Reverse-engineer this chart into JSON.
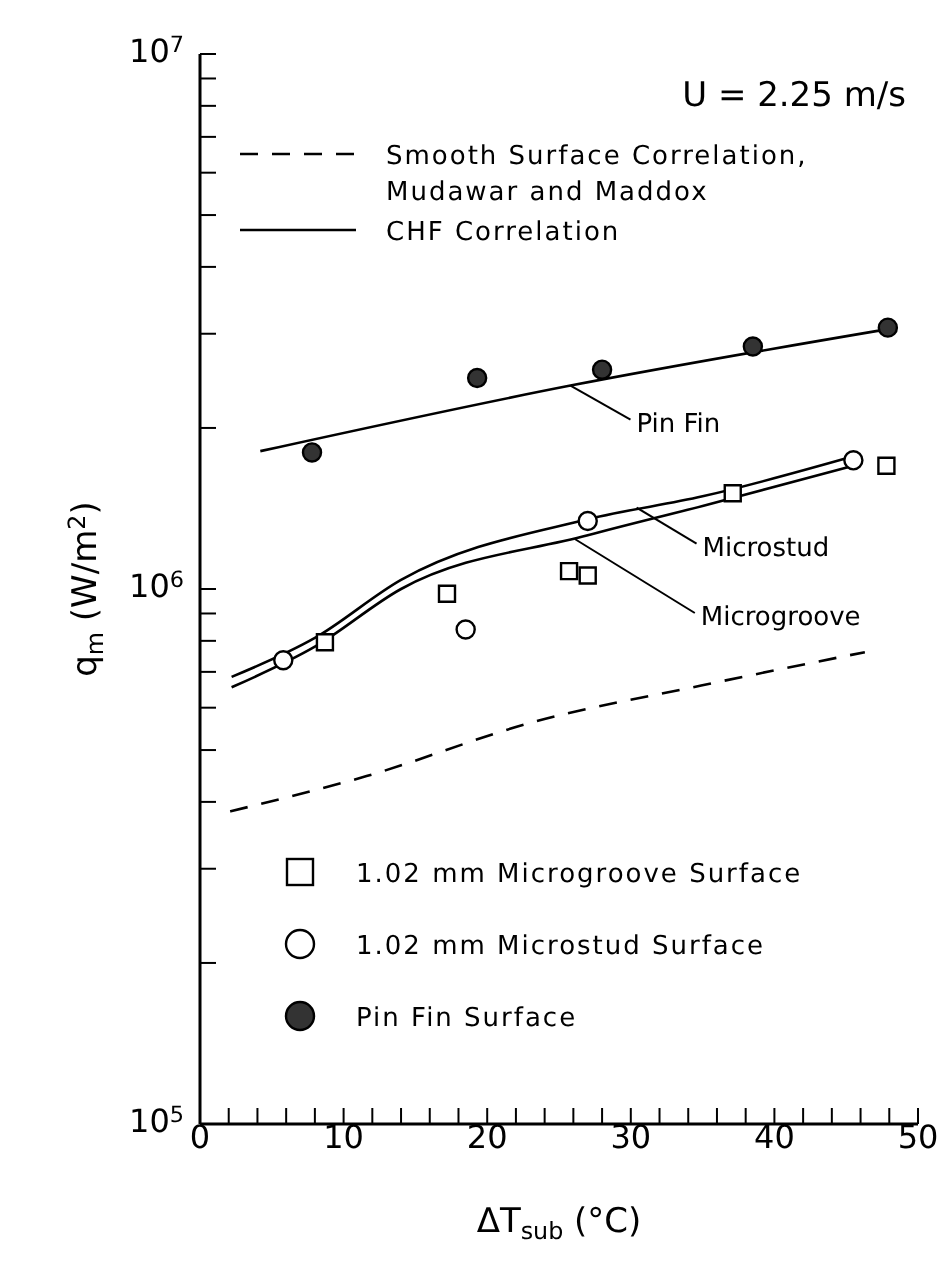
{
  "chart_data": {
    "type": "scatter",
    "xlabel": "ΔT$_{sub}$ (°C)",
    "ylabel": "q$_{m}$ (W/m$^{2}$)",
    "log": "y",
    "xlim": [
      0,
      50
    ],
    "xticks": [
      0,
      {
        "value": 2,
        "label": null
      },
      {
        "value": 4,
        "label": null
      },
      {
        "value": 6,
        "label": null
      },
      {
        "value": 8,
        "label": null
      },
      10,
      {
        "value": 12,
        "label": null
      },
      {
        "value": 14,
        "label": null
      },
      {
        "value": 16,
        "label": null
      },
      {
        "value": 18,
        "label": null
      },
      20,
      {
        "value": 22,
        "label": null
      },
      {
        "value": 24,
        "label": null
      },
      {
        "value": 26,
        "label": null
      },
      {
        "value": 28,
        "label": null
      },
      30,
      {
        "value": 32,
        "label": null
      },
      {
        "value": 34,
        "label": null
      },
      {
        "value": 36,
        "label": null
      },
      {
        "value": 38,
        "label": null
      },
      40,
      {
        "value": 42,
        "label": null
      },
      {
        "value": 44,
        "label": null
      },
      {
        "value": 46,
        "label": null
      },
      {
        "value": 48,
        "label": null
      },
      50
    ],
    "ylim": [
      100000,
      10000000
    ],
    "yticks": [
      {
        "value": 100000,
        "label": "10$^{5}$"
      },
      {
        "value": 200000,
        "label": null
      },
      {
        "value": 300000,
        "label": null
      },
      {
        "value": 400000,
        "label": null
      },
      {
        "value": 500000,
        "label": null
      },
      {
        "value": 600000,
        "label": null
      },
      {
        "value": 700000,
        "label": null
      },
      {
        "value": 800000,
        "label": null
      },
      {
        "value": 900000,
        "label": null
      },
      {
        "value": 1000000,
        "label": "10$^{6}$"
      },
      {
        "value": 2000000,
        "label": null
      },
      {
        "value": 3000000,
        "label": null
      },
      {
        "value": 4000000,
        "label": null
      },
      {
        "value": 5000000,
        "label": null
      },
      {
        "value": 6000000,
        "label": null
      },
      {
        "value": 7000000,
        "label": null
      },
      {
        "value": 8000000,
        "label": null
      },
      {
        "value": 9000000,
        "label": null
      },
      {
        "value": 10000000,
        "label": "10$^{7}$"
      }
    ],
    "grid": false,
    "legend": "left",
    "series": [
      {
        "type": "line",
        "name": "Smooth Surface Correlation,\nMudawar and Maddox",
        "color": "#000000",
        "line_style": "dashed",
        "marker": "none",
        "x": [
          2.1,
          11.6,
          23.3,
          34.9,
          46.3
        ],
        "values": [
          384000,
          447000,
          565000,
          660000,
          762000
        ]
      },
      {
        "type": "line",
        "name": "CHF Correlation",
        "color": "#000000",
        "line_style": "solid",
        "marker": "none",
        "x": [
          4.2,
          25.8,
          47.9
        ],
        "values": [
          1810000,
          2400000,
          3060000
        ]
      },
      {
        "type": "line",
        "color": "#000000",
        "line_style": "solid",
        "marker": "none",
        "x": [
          2.2,
          8,
          14,
          27,
          35,
          45.5
        ],
        "values": [
          685000,
          810000,
          1040000,
          1350000,
          1490000,
          1770000
        ]
      },
      {
        "type": "line",
        "color": "#000000",
        "line_style": "solid",
        "marker": "none",
        "x": [
          2.2,
          8,
          14,
          27,
          35,
          45.5
        ],
        "values": [
          655000,
          780000,
          1000000,
          1260000,
          1430000,
          1700000
        ]
      },
      {
        "type": "scatter",
        "name": "1.02 mm Microgroove Surface",
        "color": "#ffffff",
        "marker": "square",
        "x": [
          8.7,
          17.2,
          25.7,
          27.0,
          37.1,
          47.8
        ],
        "values": [
          795000,
          980000,
          1080000,
          1060000,
          1510000,
          1700000
        ]
      },
      {
        "type": "scatter",
        "name": "1.02 mm Microstud Surface",
        "color": "#ffffff",
        "marker": "circle",
        "x": [
          5.8,
          18.5,
          27.0,
          45.5
        ],
        "values": [
          736000,
          840000,
          1340000,
          1740000
        ]
      },
      {
        "type": "scatter",
        "name": "Pin Fin Surface",
        "color": "#333333",
        "marker": "circle",
        "x": [
          7.8,
          19.3,
          28.0,
          38.5,
          47.9
        ],
        "values": [
          1800000,
          2480000,
          2570000,
          2840000,
          3080000
        ]
      }
    ],
    "annotations": [
      "U = 2.25 m/s",
      {
        "text": "Pin Fin",
        "x": 25.8,
        "y": 2400000
      },
      {
        "text": "Microstud",
        "x": 30.4,
        "y": 1420000
      },
      {
        "text": "Microgroove",
        "x": 26.1,
        "y": 1240000
      }
    ]
  }
}
